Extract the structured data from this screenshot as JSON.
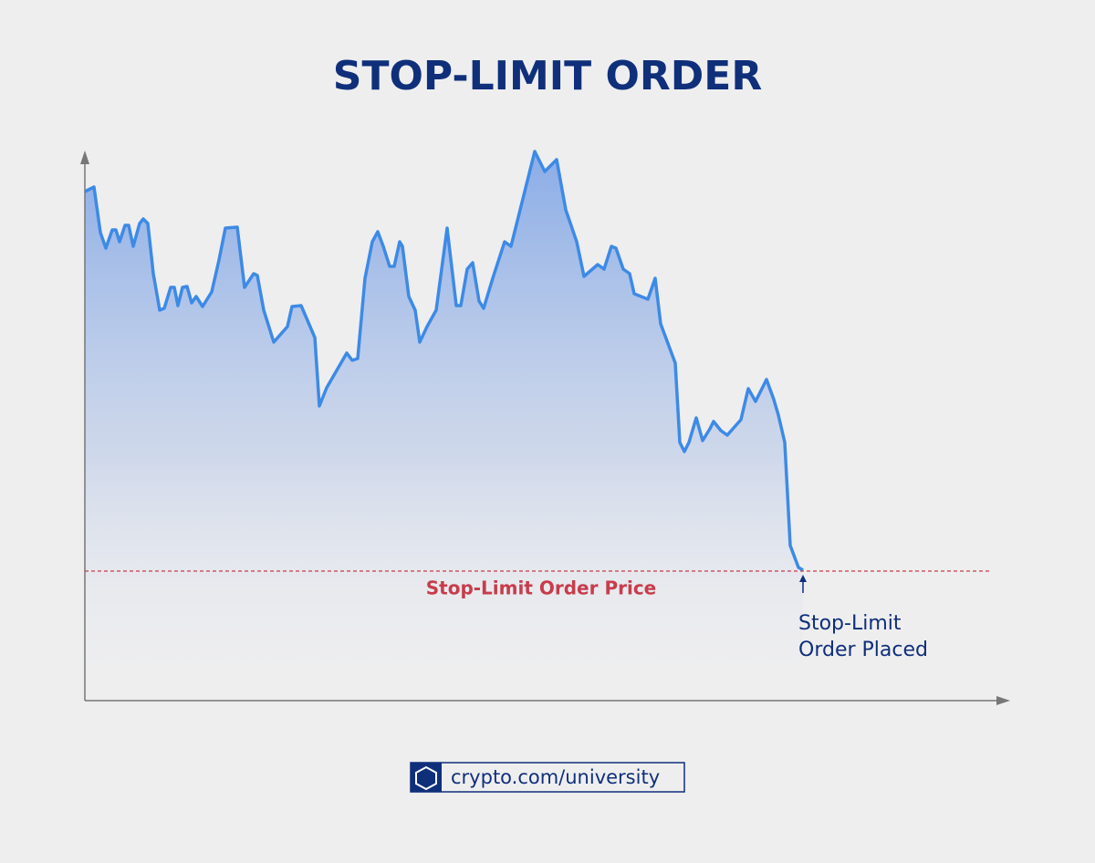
{
  "chart_data": {
    "type": "line",
    "title": "STOP-LIMIT ORDER",
    "x": [
      0,
      10,
      17,
      23,
      30,
      34,
      38,
      44,
      48,
      53,
      60,
      64,
      69,
      75,
      82,
      87,
      94,
      98,
      102,
      107,
      112,
      117,
      122,
      129,
      139,
      147,
      154,
      167,
      175,
      185,
      189,
      196,
      207,
      222,
      227,
      237,
      252,
      257,
      265,
      287,
      293,
      299,
      307,
      315,
      321,
      327,
      334,
      339,
      345,
      348,
      355,
      362,
      367,
      375,
      385,
      397,
      407,
      412,
      419,
      425,
      432,
      437,
      447,
      460,
      467,
      482,
      493,
      504,
      517,
      527,
      539,
      547,
      562,
      569,
      577,
      582,
      590,
      597,
      602,
      617,
      625,
      631,
      647,
      652,
      657,
      662,
      670,
      677,
      685,
      689,
      697,
      704,
      719,
      727,
      735,
      747,
      755,
      760,
      767,
      773,
      782,
      787
    ],
    "values": [
      558,
      563,
      513,
      496,
      516,
      516,
      503,
      521,
      521,
      498,
      523,
      528,
      523,
      468,
      428,
      430,
      453,
      453,
      433,
      453,
      454,
      436,
      443,
      432,
      448,
      483,
      518,
      519,
      453,
      468,
      466,
      428,
      393,
      410,
      432,
      433,
      398,
      323,
      343,
      381,
      373,
      375,
      463,
      503,
      514,
      498,
      476,
      476,
      503,
      498,
      443,
      428,
      393,
      410,
      428,
      518,
      433,
      433,
      473,
      480,
      438,
      430,
      463,
      503,
      498,
      558,
      602,
      580,
      593,
      538,
      503,
      465,
      478,
      473,
      498,
      496,
      473,
      468,
      446,
      440,
      463,
      413,
      370,
      283,
      273,
      283,
      310,
      285,
      298,
      306,
      296,
      291,
      308,
      342,
      328,
      352,
      330,
      313,
      283,
      170,
      146,
      143
    ],
    "color": "#3d8ae6",
    "xlim": [
      0,
      1012
    ],
    "ylim": [
      0,
      603
    ],
    "stop_price": {
      "value": 142,
      "label": "Stop-Limit Order Price",
      "color": "#c83c4c"
    },
    "annotation": {
      "lines": [
        "Stop-Limit",
        "Order Placed"
      ]
    },
    "footer": "crypto.com/university"
  }
}
